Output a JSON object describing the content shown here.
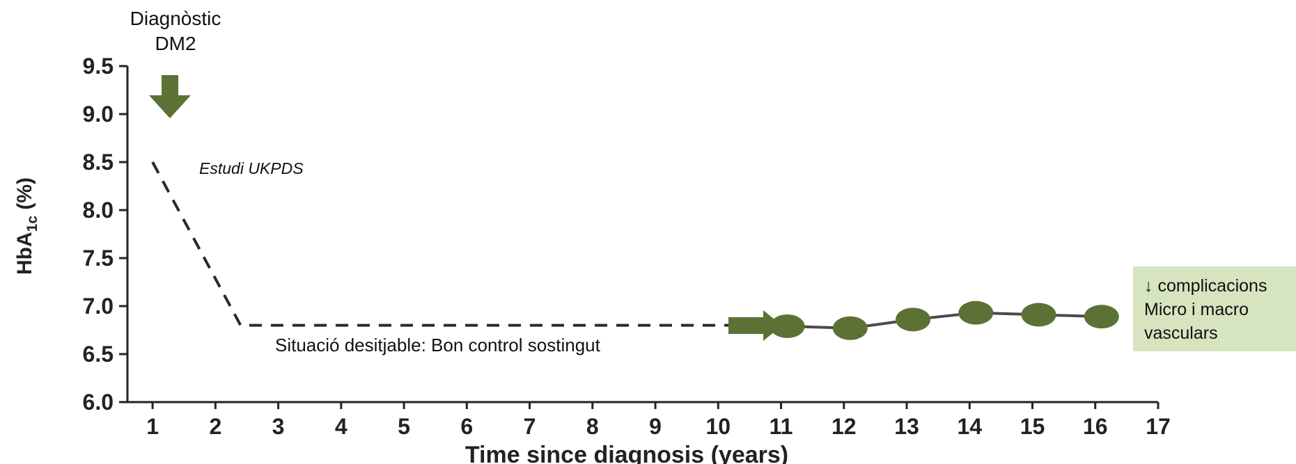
{
  "colors": {
    "marker": "#5b7234",
    "arrow": "#5b7234",
    "callout_bg": "#d6e4bf",
    "axis": "#222222",
    "dashed_line": "#2a2a2a",
    "solid_line": "#4a4a4a"
  },
  "annotations": {
    "diagnosis_line1": "Diagnòstic",
    "diagnosis_line2": "DM2",
    "study": "Estudi UKPDS",
    "desired": "Situació desitjable: Bon control sostingut",
    "callout_line1": "↓ complicacions",
    "callout_line2": "Micro i macro",
    "callout_line3": "vasculars"
  },
  "icons": {
    "down_arrow": "down-arrow-icon",
    "right_arrow": "right-arrow-icon"
  },
  "chart_data": {
    "type": "line",
    "xlabel": "Time since diagnosis (years)",
    "ylabel": "HbA1c (%)",
    "xlim": [
      0.6,
      17
    ],
    "ylim": [
      6.0,
      9.5
    ],
    "x_ticks": [
      "1",
      "2",
      "3",
      "4",
      "5",
      "6",
      "7",
      "8",
      "9",
      "10",
      "11",
      "12",
      "13",
      "14",
      "15",
      "16",
      "17"
    ],
    "y_ticks": [
      "6.0",
      "6.5",
      "7.0",
      "7.5",
      "8.0",
      "8.5",
      "9.0",
      "9.5"
    ],
    "grid": false,
    "series": [
      {
        "style": "dashed",
        "points": [
          [
            1,
            8.5
          ],
          [
            2.4,
            6.8
          ],
          [
            10.5,
            6.8
          ]
        ]
      },
      {
        "style": "solid-markers",
        "points": [
          [
            11.1,
            6.79
          ],
          [
            12.1,
            6.77
          ],
          [
            13.1,
            6.86
          ],
          [
            14.1,
            6.93
          ],
          [
            15.1,
            6.91
          ],
          [
            16.1,
            6.89
          ]
        ]
      }
    ]
  }
}
